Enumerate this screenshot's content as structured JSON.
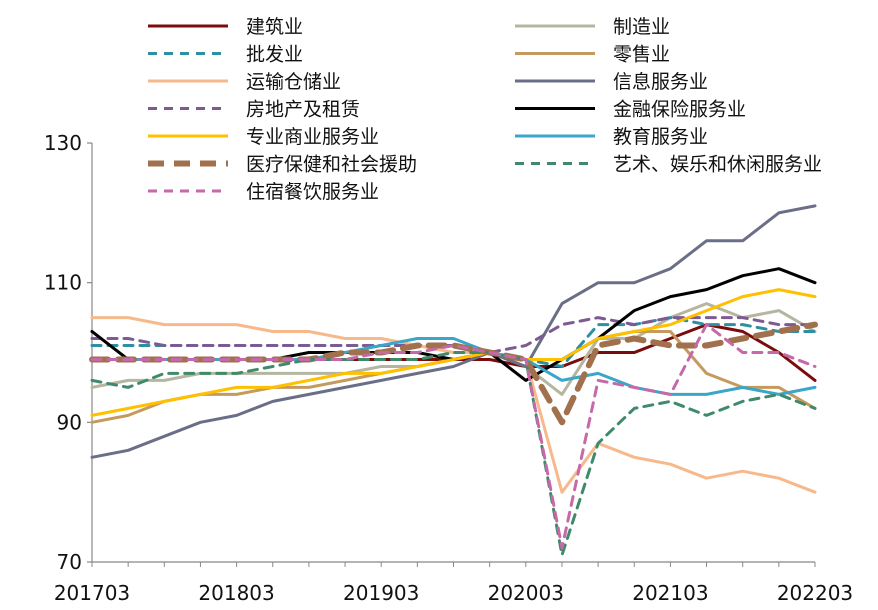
{
  "chart_data": {
    "type": "line",
    "title": "",
    "xlabel": "",
    "ylabel": "",
    "ylim": [
      70,
      130
    ],
    "yticks": [
      70,
      90,
      110,
      130
    ],
    "xticks": [
      "201703",
      "201803",
      "201903",
      "202003",
      "202103",
      "202203"
    ],
    "x": [
      "201703",
      "201706",
      "201709",
      "201712",
      "201803",
      "201806",
      "201809",
      "201812",
      "201903",
      "201906",
      "201909",
      "201912",
      "202003",
      "202006",
      "202009",
      "202012",
      "202103",
      "202106",
      "202109",
      "202112",
      "202203"
    ],
    "grid": false,
    "legend_position": "top",
    "series": [
      {
        "name": "建筑业",
        "color": "#7B0C0C",
        "dash": "solid",
        "values": [
          103,
          99,
          99,
          99,
          99,
          99,
          99,
          99,
          99,
          99,
          99,
          99,
          98,
          98,
          100,
          100,
          102,
          104,
          103,
          100,
          96
        ]
      },
      {
        "name": "制造业",
        "color": "#B5B5A0",
        "dash": "solid",
        "values": [
          95,
          96,
          96,
          97,
          97,
          97,
          97,
          97,
          98,
          98,
          99,
          100,
          98,
          94,
          102,
          102,
          105,
          107,
          105,
          106,
          103
        ]
      },
      {
        "name": "批发业",
        "color": "#2E8FA1",
        "dash": "dash",
        "values": [
          101,
          101,
          101,
          101,
          101,
          101,
          101,
          101,
          101,
          101,
          101,
          100,
          99,
          98,
          104,
          104,
          105,
          104,
          104,
          103,
          103
        ]
      },
      {
        "name": "零售业",
        "color": "#C49A5E",
        "dash": "solid",
        "values": [
          90,
          91,
          93,
          94,
          94,
          95,
          95,
          96,
          97,
          98,
          99,
          100,
          99,
          99,
          102,
          103,
          103,
          97,
          95,
          95,
          92
        ]
      },
      {
        "name": "运输仓储业",
        "color": "#F7B98C",
        "dash": "solid",
        "values": [
          105,
          105,
          104,
          104,
          104,
          103,
          103,
          102,
          102,
          101,
          100,
          100,
          99,
          80,
          87,
          85,
          84,
          82,
          83,
          82,
          80
        ]
      },
      {
        "name": "信息服务业",
        "color": "#6A6E86",
        "dash": "solid",
        "values": [
          85,
          86,
          88,
          90,
          91,
          93,
          94,
          95,
          96,
          97,
          98,
          100,
          98,
          107,
          110,
          110,
          112,
          116,
          116,
          120,
          121
        ]
      },
      {
        "name": "房地产及租赁",
        "color": "#7E5A93",
        "dash": "dash",
        "values": [
          102,
          102,
          101,
          101,
          101,
          101,
          101,
          101,
          101,
          101,
          101,
          100,
          101,
          104,
          105,
          104,
          105,
          105,
          105,
          104,
          104
        ]
      },
      {
        "name": "金融保险服务业",
        "color": "#000000",
        "dash": "solid",
        "values": [
          103,
          99,
          99,
          99,
          99,
          99,
          100,
          100,
          100,
          100,
          99,
          100,
          96,
          99,
          102,
          106,
          108,
          109,
          111,
          112,
          110
        ]
      },
      {
        "name": "专业商业服务业",
        "color": "#FFC000",
        "dash": "solid",
        "values": [
          91,
          92,
          93,
          94,
          95,
          95,
          96,
          97,
          97,
          98,
          99,
          100,
          99,
          99,
          102,
          103,
          104,
          106,
          108,
          109,
          108
        ]
      },
      {
        "name": "教育服务业",
        "color": "#3AA6C8",
        "dash": "solid",
        "values": [
          99,
          99,
          99,
          99,
          99,
          99,
          99,
          100,
          101,
          102,
          102,
          100,
          99,
          96,
          97,
          95,
          94,
          94,
          95,
          94,
          95
        ]
      },
      {
        "name": "医疗保健和社会援助",
        "color": "#A0714C",
        "dash": "longdash",
        "values": [
          99,
          99,
          99,
          99,
          99,
          99,
          99,
          100,
          100,
          101,
          101,
          100,
          99,
          90,
          101,
          102,
          101,
          101,
          102,
          103,
          104
        ]
      },
      {
        "name": "艺术、娱乐和休闲服务业",
        "color": "#3F8A6A",
        "dash": "dash",
        "values": [
          96,
          95,
          97,
          97,
          97,
          98,
          99,
          99,
          99,
          99,
          100,
          100,
          99,
          71,
          87,
          92,
          93,
          91,
          93,
          94,
          92
        ]
      },
      {
        "name": "住宿餐饮服务业",
        "color": "#C569A8",
        "dash": "dash",
        "values": [
          99,
          99,
          99,
          99,
          99,
          99,
          99,
          99,
          100,
          100,
          101,
          100,
          99,
          72,
          96,
          95,
          94,
          104,
          100,
          100,
          98
        ]
      }
    ]
  }
}
